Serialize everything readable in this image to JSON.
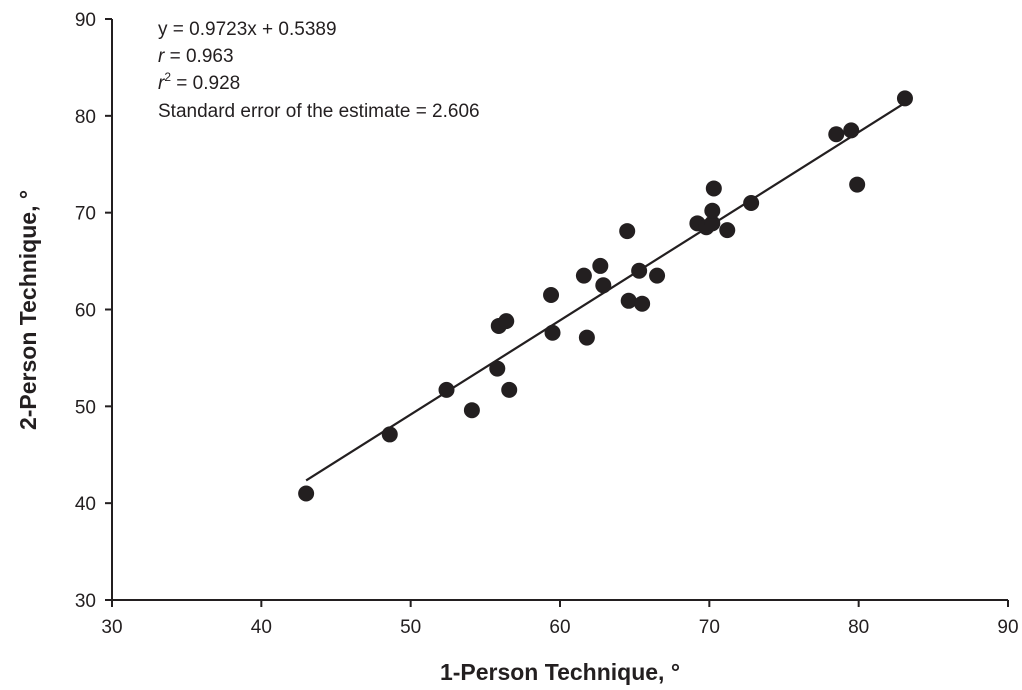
{
  "chart_data": {
    "type": "scatter",
    "xlabel": "1-Person Technique, °",
    "ylabel": "2-Person Technique, °",
    "xlim": [
      30,
      90
    ],
    "ylim": [
      30,
      90
    ],
    "xticks": [
      30,
      40,
      50,
      60,
      70,
      80,
      90
    ],
    "yticks": [
      30,
      40,
      50,
      60,
      70,
      80,
      90
    ],
    "grid": false,
    "annotations": {
      "equation": "y = 0.9723x + 0.5389",
      "r_symbol": "r",
      "r_value": " = 0.963",
      "r2_symbol": "r",
      "r2_superscript": "2",
      "r2_value": " = 0.928",
      "see": "Standard error of the estimate = 2.606"
    },
    "regression": {
      "slope": 0.9723,
      "intercept": 0.5389,
      "x_range": [
        43,
        83.2
      ]
    },
    "points": [
      {
        "x": 43.0,
        "y": 41.0
      },
      {
        "x": 48.6,
        "y": 47.1
      },
      {
        "x": 52.4,
        "y": 51.7
      },
      {
        "x": 54.1,
        "y": 49.6
      },
      {
        "x": 55.8,
        "y": 53.9
      },
      {
        "x": 56.6,
        "y": 51.7
      },
      {
        "x": 55.9,
        "y": 58.3
      },
      {
        "x": 56.4,
        "y": 58.8
      },
      {
        "x": 59.4,
        "y": 61.5
      },
      {
        "x": 59.5,
        "y": 57.6
      },
      {
        "x": 61.6,
        "y": 63.5
      },
      {
        "x": 61.8,
        "y": 57.1
      },
      {
        "x": 62.7,
        "y": 64.5
      },
      {
        "x": 62.9,
        "y": 62.5
      },
      {
        "x": 64.5,
        "y": 68.1
      },
      {
        "x": 64.6,
        "y": 60.9
      },
      {
        "x": 65.3,
        "y": 64.0
      },
      {
        "x": 65.5,
        "y": 60.6
      },
      {
        "x": 66.5,
        "y": 63.5
      },
      {
        "x": 69.2,
        "y": 68.9
      },
      {
        "x": 69.8,
        "y": 68.5
      },
      {
        "x": 70.2,
        "y": 68.9
      },
      {
        "x": 70.2,
        "y": 70.2
      },
      {
        "x": 70.3,
        "y": 72.5
      },
      {
        "x": 71.2,
        "y": 68.2
      },
      {
        "x": 72.8,
        "y": 71.0
      },
      {
        "x": 78.5,
        "y": 78.1
      },
      {
        "x": 79.5,
        "y": 78.5
      },
      {
        "x": 79.9,
        "y": 72.9
      },
      {
        "x": 83.1,
        "y": 81.8
      }
    ]
  }
}
